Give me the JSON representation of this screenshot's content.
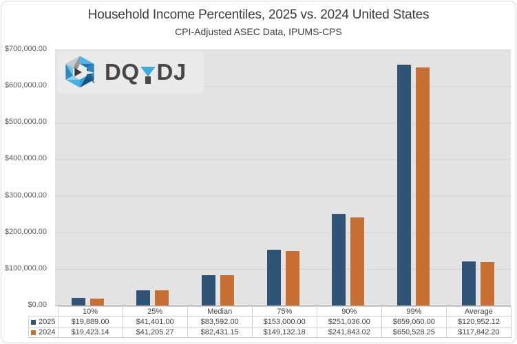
{
  "logo": {
    "name": "DQYDJ",
    "brand_pre": "DQ",
    "brand_post": "DJ",
    "accent_color": "#38ace0"
  },
  "chart_data": {
    "type": "bar",
    "title": "Household Income Percentiles, 2025 vs. 2024 United States",
    "subtitle": "CPI-Adjusted ASEC Data, IPUMS-CPS",
    "categories": [
      "10%",
      "25%",
      "Median",
      "75%",
      "90%",
      "99%",
      "Average"
    ],
    "series": [
      {
        "name": "2025",
        "color": "#305475",
        "values": [
          19889.0,
          41401.0,
          83592.0,
          153000.0,
          251036.0,
          659060.0,
          120952.12
        ],
        "labels": [
          "$19,889.00",
          "$41,401.00",
          "$83,592.00",
          "$153,000.00",
          "$251,036.00",
          "$659,060.00",
          "$120,952.12"
        ]
      },
      {
        "name": "2024",
        "color": "#c87034",
        "values": [
          19423.14,
          41205.27,
          82431.15,
          149132.18,
          241843.02,
          650528.25,
          117842.2
        ],
        "labels": [
          "$19,423.14",
          "$41,205.27",
          "$82,431.15",
          "$149,132.18",
          "$241,843.02",
          "$650,528.25",
          "$117,842.20"
        ]
      }
    ],
    "y_axis": {
      "min": 0,
      "max": 700000,
      "tick_step": 100000,
      "tick_labels": [
        "$700,000.00",
        "$600,000.00",
        "$500,000.00",
        "$400,000.00",
        "$300,000.00",
        "$200,000.00",
        "$100,000.00",
        "$0.00"
      ]
    },
    "grid": true,
    "plot_bg": "#e3e3e3",
    "legend_position": "table-left"
  }
}
